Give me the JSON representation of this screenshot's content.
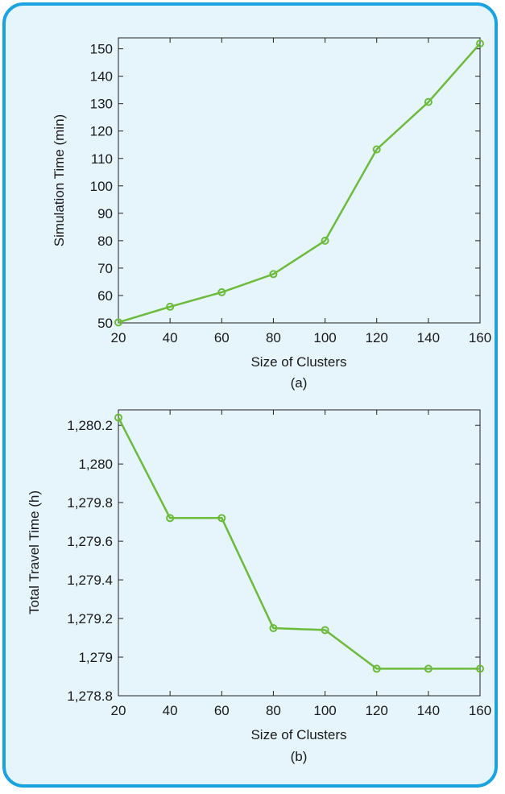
{
  "figure": {
    "border_color": "#1aa3e0",
    "background_color": "#e6f4fb",
    "series_color": "#6cbb3c"
  },
  "chart_data": [
    {
      "type": "line",
      "caption": "(a)",
      "xlabel": "Size of Clusters",
      "ylabel": "Simulation Time (min)",
      "xlim": [
        20,
        160
      ],
      "ylim": [
        50,
        154
      ],
      "xticks": [
        20,
        40,
        60,
        80,
        100,
        120,
        140,
        160
      ],
      "xtick_labels": [
        "20",
        "40",
        "60",
        "80",
        "100",
        "120",
        "140",
        "160"
      ],
      "yticks": [
        50,
        60,
        70,
        80,
        90,
        100,
        110,
        120,
        130,
        140,
        150
      ],
      "ytick_labels": [
        "50",
        "60",
        "70",
        "80",
        "90",
        "100",
        "110",
        "120",
        "130",
        "140",
        "150"
      ],
      "grid": false,
      "legend": "none",
      "series": [
        {
          "x": [
            20,
            40,
            60,
            80,
            100,
            120,
            140,
            160
          ],
          "y": [
            50.2,
            55.9,
            61.2,
            67.8,
            80.0,
            113.3,
            130.6,
            151.9
          ]
        }
      ]
    },
    {
      "type": "line",
      "caption": "(b)",
      "xlabel": "Size of Clusters",
      "ylabel": "Total Travel Time (h)",
      "xlim": [
        20,
        160
      ],
      "ylim": [
        1278.8,
        1280.28
      ],
      "xticks": [
        20,
        40,
        60,
        80,
        100,
        120,
        140,
        160
      ],
      "xtick_labels": [
        "20",
        "40",
        "60",
        "80",
        "100",
        "120",
        "140",
        "160"
      ],
      "yticks": [
        1278.8,
        1279.0,
        1279.2,
        1279.4,
        1279.6,
        1279.8,
        1280.0,
        1280.2
      ],
      "ytick_labels": [
        "1,278.8",
        "1,279",
        "1,279.2",
        "1,279.4",
        "1,279.6",
        "1,279.8",
        "1,280",
        "1,280.2"
      ],
      "grid": false,
      "legend": "none",
      "series": [
        {
          "x": [
            20,
            40,
            60,
            80,
            100,
            120,
            140,
            160
          ],
          "y": [
            1280.24,
            1279.72,
            1279.72,
            1279.15,
            1279.14,
            1278.94,
            1278.94,
            1278.94
          ]
        }
      ]
    }
  ]
}
